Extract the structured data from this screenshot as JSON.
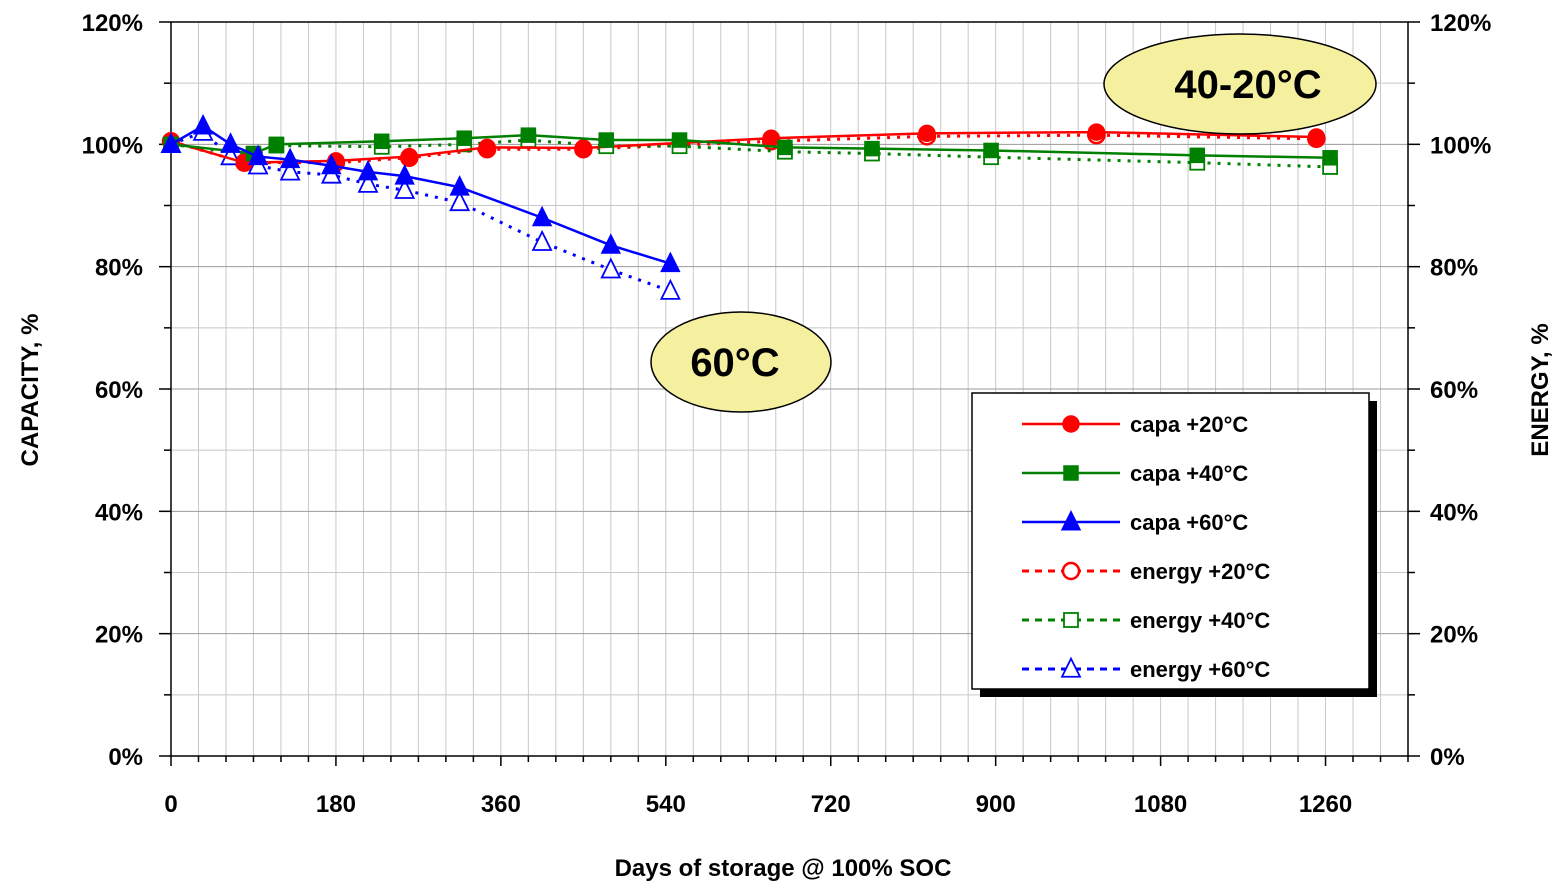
{
  "chart_data": {
    "type": "line",
    "xlabel": "Days of storage @ 100% SOC",
    "ylabel_left": "CAPACITY,  %",
    "ylabel_right": "ENERGY, %",
    "x_ticks": [
      0,
      180,
      360,
      540,
      720,
      900,
      1080,
      1260
    ],
    "x_tick_labels": [
      "0",
      "180",
      "360",
      "540",
      "720",
      "900",
      "1080",
      "1260"
    ],
    "xlim": [
      0,
      1350
    ],
    "y_ticks": [
      0,
      20,
      40,
      60,
      80,
      100,
      120
    ],
    "y_tick_labels": [
      "0%",
      "20%",
      "40%",
      "60%",
      "80%",
      "100%",
      "120%"
    ],
    "ylim": [
      0,
      120
    ],
    "grid": true,
    "legend_position": "lower-right",
    "annotations": [
      {
        "text": "40-20°C",
        "x": 1180,
        "y": 110
      },
      {
        "text": "60°C",
        "x": 620,
        "y": 65
      }
    ],
    "series": [
      {
        "name": "capa +20°C",
        "color": "#ff0000",
        "dash": "solid",
        "marker": "circle",
        "filled": true,
        "x": [
          0,
          80,
          180,
          260,
          345,
          450,
          655,
          825,
          1010,
          1250
        ],
        "y": [
          100.5,
          97,
          97.3,
          98,
          99.5,
          99.4,
          101,
          101.8,
          102,
          101.2
        ]
      },
      {
        "name": "capa +40°C",
        "color": "#008000",
        "dash": "solid",
        "marker": "square",
        "filled": true,
        "x": [
          0,
          90,
          115,
          230,
          320,
          390,
          475,
          555,
          670,
          765,
          895,
          1120,
          1265
        ],
        "y": [
          100,
          98.5,
          100,
          100.5,
          101,
          101.5,
          100.7,
          100.7,
          99.5,
          99.3,
          99,
          98.2,
          97.8
        ]
      },
      {
        "name": "capa +60°C",
        "color": "#0000ff",
        "dash": "solid",
        "marker": "triangle",
        "filled": true,
        "x": [
          0,
          35,
          65,
          95,
          130,
          175,
          215,
          255,
          315,
          405,
          480,
          545
        ],
        "y": [
          100,
          103,
          100,
          98,
          97.5,
          96.5,
          95.5,
          94.8,
          93,
          88,
          83.5,
          80.5
        ]
      },
      {
        "name": "energy +20°C",
        "color": "#ff0000",
        "dash": "dotted",
        "marker": "circle",
        "filled": false,
        "x": [
          0,
          80,
          180,
          260,
          345,
          450,
          655,
          825,
          1010,
          1250
        ],
        "y": [
          100.5,
          97,
          97,
          97.8,
          99.2,
          99.2,
          100.5,
          101.3,
          101.5,
          100.9
        ]
      },
      {
        "name": "energy +40°C",
        "color": "#008000",
        "dash": "dotted",
        "marker": "square",
        "filled": false,
        "x": [
          0,
          90,
          115,
          230,
          320,
          390,
          475,
          555,
          670,
          765,
          895,
          1120,
          1265
        ],
        "y": [
          100,
          98.2,
          99.8,
          99.6,
          100,
          100.7,
          99.7,
          99.7,
          98.8,
          98.5,
          97.9,
          97,
          96.3
        ]
      },
      {
        "name": "energy +60°C",
        "color": "#0000ff",
        "dash": "dotted",
        "marker": "triangle",
        "filled": false,
        "x": [
          0,
          35,
          65,
          95,
          130,
          175,
          215,
          255,
          315,
          405,
          480,
          545
        ],
        "y": [
          100,
          102,
          98,
          96.5,
          95.5,
          95,
          93.5,
          92.5,
          90.5,
          84,
          79.5,
          76
        ]
      }
    ]
  }
}
